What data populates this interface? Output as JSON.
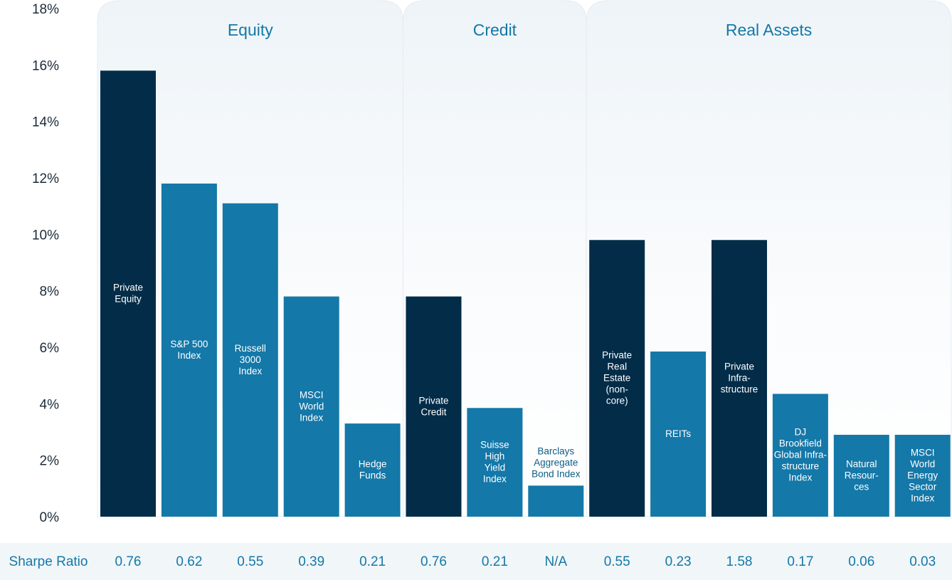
{
  "chart_data": {
    "type": "bar",
    "title": "",
    "xlabel": "",
    "ylabel": "",
    "ylim": [
      0,
      18
    ],
    "yticks": [
      "0%",
      "2%",
      "4%",
      "6%",
      "8%",
      "10%",
      "12%",
      "14%",
      "16%",
      "18%"
    ],
    "groups": [
      {
        "name": "Equity",
        "start": 0,
        "end": 4
      },
      {
        "name": "Credit",
        "start": 5,
        "end": 7
      },
      {
        "name": "Real Assets",
        "start": 8,
        "end": 13
      }
    ],
    "categories": [
      {
        "lines": [
          "Private",
          "Equity"
        ],
        "value": 15.8,
        "private": true
      },
      {
        "lines": [
          "S&P 500",
          "Index"
        ],
        "value": 11.8,
        "private": false
      },
      {
        "lines": [
          "Russell",
          "3000",
          "Index"
        ],
        "value": 11.1,
        "private": false
      },
      {
        "lines": [
          "MSCI",
          "World",
          "Index"
        ],
        "value": 7.8,
        "private": false
      },
      {
        "lines": [
          "Hedge",
          "Funds"
        ],
        "value": 3.3,
        "private": false
      },
      {
        "lines": [
          "Private",
          "Credit"
        ],
        "value": 7.8,
        "private": true
      },
      {
        "lines": [
          "Suisse",
          "High",
          "Yield",
          "Index"
        ],
        "value": 3.85,
        "private": false
      },
      {
        "lines": [
          "Barclays",
          "Aggregate",
          "Bond Index"
        ],
        "value": 1.1,
        "private": false
      },
      {
        "lines": [
          "Private",
          "Real",
          "Estate",
          "(non-",
          "core)"
        ],
        "value": 9.8,
        "private": true
      },
      {
        "lines": [
          "REITs"
        ],
        "value": 5.85,
        "private": false
      },
      {
        "lines": [
          "Private",
          "Infra-",
          "structure"
        ],
        "value": 9.8,
        "private": true
      },
      {
        "lines": [
          "DJ",
          "Brookfield",
          "Global Infra-",
          "structure",
          "Index"
        ],
        "value": 4.35,
        "private": false
      },
      {
        "lines": [
          "Natural",
          "Resour-",
          "ces"
        ],
        "value": 2.9,
        "private": false
      },
      {
        "lines": [
          "MSCI",
          "World",
          "Energy",
          "Sector",
          "Index"
        ],
        "value": 2.9,
        "private": false
      }
    ],
    "sharpe": {
      "label": "Sharpe Ratio",
      "values": [
        "0.76",
        "0.62",
        "0.55",
        "0.39",
        "0.21",
        "0.76",
        "0.21",
        "N/A",
        "0.55",
        "0.23",
        "1.58",
        "0.17",
        "0.06",
        "0.03"
      ]
    },
    "colors": {
      "private": "#022c48",
      "public": "#1478a8",
      "panel_top": "#f3f7fa",
      "panel_bottom": "#ffffff",
      "sharpe_band": "#f1f6f9"
    }
  }
}
